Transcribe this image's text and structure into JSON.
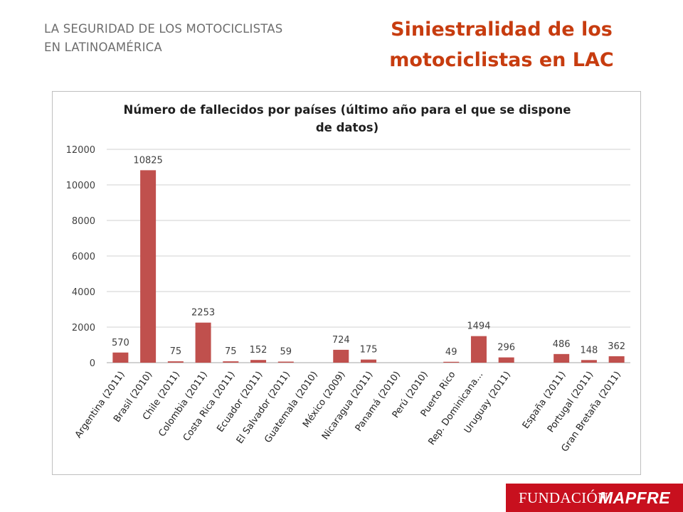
{
  "header": {
    "kicker_line1": "LA SEGURIDAD DE LOS MOTOCICLISTAS",
    "kicker_line2": "EN LATINOAMÉRICA",
    "title_line1": "Siniestralidad de los",
    "title_line2": "motociclistas en LAC"
  },
  "logo": {
    "part1": "FUNDACIÓN",
    "part2": "MAPFRE"
  },
  "chart_data": {
    "type": "bar",
    "title_lines": [
      "Número de fallecidos por países (último año para el que se dispone",
      "de datos)"
    ],
    "categories": [
      "Argentina (2011)",
      "Brasil (2010)",
      "Chile (2011)",
      "Colombia (2011)",
      "Costa Rica (2011)",
      "Ecuador (2011)",
      "El Salvador (2011)",
      "Guatemala (2010)",
      "México (2009)",
      "Nicaragua (2011)",
      "Panamá (2010)",
      "Perú (2010)",
      "Puerto Rico",
      "Rep. Dominicana...",
      "Uruguay (2011)",
      "",
      "España (2011)",
      "Portugal (2011)",
      "Gran Bretaña (2011)"
    ],
    "values": [
      570,
      10825,
      75,
      2253,
      75,
      152,
      59,
      null,
      724,
      175,
      null,
      null,
      49,
      1494,
      296,
      null,
      486,
      148,
      362
    ],
    "data_labels": [
      "570",
      "10825",
      "75",
      "2253",
      "75",
      "152",
      "59",
      "",
      "724",
      "175",
      "",
      "",
      "49",
      "1494",
      "296",
      "",
      "486",
      "148",
      "362"
    ],
    "y_ticks": [
      0,
      2000,
      4000,
      6000,
      8000,
      10000,
      12000
    ],
    "ylim": [
      0,
      12000
    ],
    "grid": true,
    "legend": "none",
    "bar_color": "#c0504d"
  }
}
